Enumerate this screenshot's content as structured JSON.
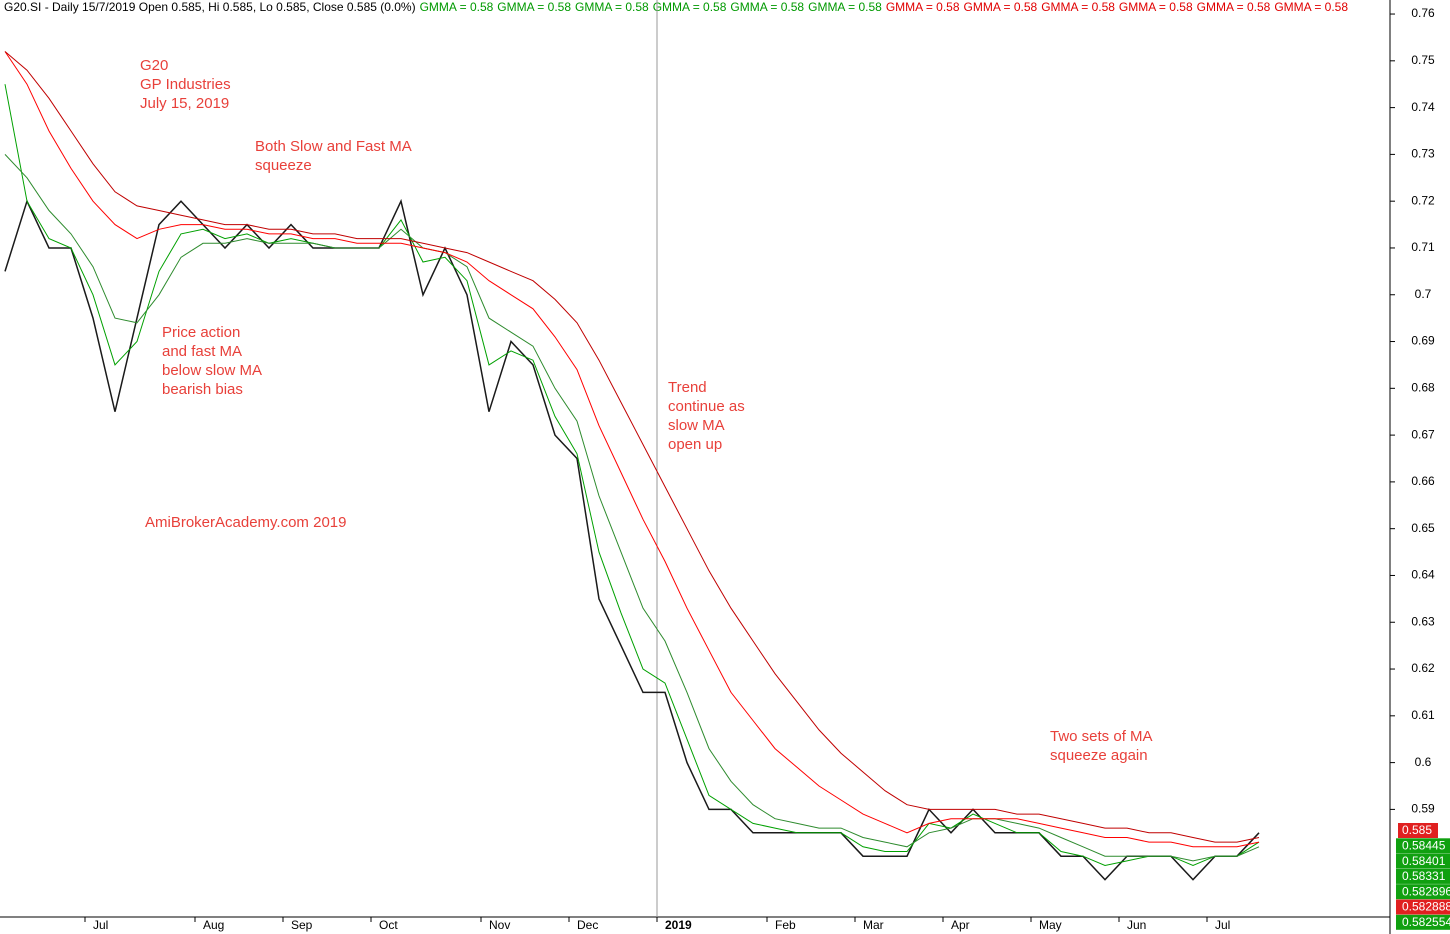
{
  "chart_data": {
    "type": "line",
    "header": {
      "text": "G20.SI - Daily 15/7/2019 Open 0.585, Hi 0.585, Lo 0.585, Close 0.585 (0.0%)",
      "gmma": [
        {
          "label": "GMMA = 0.58",
          "color": "#009900"
        },
        {
          "label": "GMMA = 0.58",
          "color": "#009900"
        },
        {
          "label": "GMMA = 0.58",
          "color": "#009900"
        },
        {
          "label": "GMMA = 0.58",
          "color": "#009900"
        },
        {
          "label": "GMMA = 0.58",
          "color": "#009900"
        },
        {
          "label": "GMMA = 0.58",
          "color": "#009900"
        },
        {
          "label": "GMMA = 0.58",
          "color": "#e00000"
        },
        {
          "label": "GMMA = 0.58",
          "color": "#e00000"
        },
        {
          "label": "GMMA = 0.58",
          "color": "#e00000"
        },
        {
          "label": "GMMA = 0.58",
          "color": "#e00000"
        },
        {
          "label": "GMMA = 0.58",
          "color": "#e00000"
        },
        {
          "label": "GMMA = 0.58",
          "color": "#e00000"
        }
      ]
    },
    "annotation_color": "#e8403a",
    "annotations": [
      [
        "G20",
        "GP Industries",
        "July 15, 2019"
      ],
      [
        "Both Slow and Fast MA",
        "squeeze"
      ],
      [
        "Price action",
        "and fast MA",
        "below slow MA",
        "bearish bias"
      ],
      [
        "Trend",
        "continue as",
        "slow MA",
        "open up"
      ],
      [
        "AmiBrokerAcademy.com   2019"
      ],
      [
        "Two sets of MA",
        "squeeze again"
      ]
    ],
    "categories": [
      null,
      null,
      null,
      null,
      "Jul",
      null,
      null,
      null,
      null,
      "Aug",
      null,
      null,
      null,
      "Sep",
      null,
      null,
      null,
      "Oct",
      null,
      null,
      null,
      null,
      "Nov",
      null,
      null,
      null,
      "Dec",
      null,
      null,
      null,
      "2019",
      null,
      null,
      null,
      null,
      "Feb",
      null,
      null,
      null,
      "Mar",
      null,
      null,
      null,
      "Apr",
      null,
      null,
      null,
      "May",
      null,
      null,
      null,
      "Jun",
      null,
      null,
      null,
      "Jul",
      null,
      null
    ],
    "series": [
      {
        "color": "#1a1a1a",
        "values": [
          0.705,
          0.72,
          0.71,
          0.71,
          0.695,
          0.675,
          0.695,
          0.715,
          0.72,
          0.715,
          0.71,
          0.715,
          0.71,
          0.715,
          0.71,
          0.71,
          0.71,
          0.71,
          0.72,
          0.7,
          0.71,
          0.7,
          0.675,
          0.69,
          0.685,
          0.67,
          0.665,
          0.635,
          0.625,
          0.615,
          0.615,
          0.6,
          0.59,
          0.59,
          0.585,
          0.585,
          0.585,
          0.585,
          0.585,
          0.58,
          0.58,
          0.58,
          0.59,
          0.585,
          0.59,
          0.585,
          0.585,
          0.585,
          0.58,
          0.58,
          0.575,
          0.58,
          0.58,
          0.58,
          0.575,
          0.58,
          0.58,
          0.585
        ]
      },
      {
        "color": "#00a000",
        "values": [
          0.745,
          0.72,
          0.712,
          0.71,
          0.7,
          0.685,
          0.69,
          0.705,
          0.713,
          0.714,
          0.712,
          0.713,
          0.711,
          0.712,
          0.711,
          0.71,
          0.71,
          0.71,
          0.716,
          0.707,
          0.708,
          0.703,
          0.685,
          0.688,
          0.686,
          0.674,
          0.666,
          0.645,
          0.632,
          0.62,
          0.617,
          0.605,
          0.593,
          0.59,
          0.587,
          0.586,
          0.585,
          0.585,
          0.585,
          0.582,
          0.581,
          0.581,
          0.587,
          0.586,
          0.589,
          0.587,
          0.585,
          0.585,
          0.581,
          0.58,
          0.578,
          0.579,
          0.58,
          0.58,
          0.578,
          0.58,
          0.58,
          0.583
        ]
      },
      {
        "color": "#2e8b2e",
        "values": [
          0.73,
          0.725,
          0.718,
          0.713,
          0.706,
          0.695,
          0.694,
          0.7,
          0.708,
          0.711,
          0.711,
          0.712,
          0.711,
          0.711,
          0.711,
          0.71,
          0.71,
          0.71,
          0.714,
          0.71,
          0.709,
          0.706,
          0.695,
          0.692,
          0.689,
          0.68,
          0.673,
          0.657,
          0.645,
          0.633,
          0.626,
          0.615,
          0.603,
          0.596,
          0.591,
          0.588,
          0.587,
          0.586,
          0.586,
          0.584,
          0.583,
          0.582,
          0.585,
          0.586,
          0.588,
          0.588,
          0.587,
          0.586,
          0.584,
          0.582,
          0.58,
          0.58,
          0.58,
          0.58,
          0.579,
          0.58,
          0.58,
          0.582
        ]
      },
      {
        "color": "#ff0000",
        "values": [
          0.752,
          0.745,
          0.735,
          0.727,
          0.72,
          0.715,
          0.712,
          0.714,
          0.715,
          0.715,
          0.714,
          0.714,
          0.713,
          0.713,
          0.712,
          0.712,
          0.711,
          0.711,
          0.711,
          0.71,
          0.709,
          0.707,
          0.703,
          0.7,
          0.697,
          0.691,
          0.684,
          0.672,
          0.662,
          0.652,
          0.643,
          0.633,
          0.624,
          0.615,
          0.609,
          0.603,
          0.599,
          0.595,
          0.592,
          0.589,
          0.587,
          0.585,
          0.587,
          0.588,
          0.588,
          0.588,
          0.588,
          0.587,
          0.586,
          0.585,
          0.584,
          0.584,
          0.583,
          0.583,
          0.582,
          0.582,
          0.582,
          0.583
        ]
      },
      {
        "color": "#c00000",
        "values": [
          0.752,
          0.748,
          0.742,
          0.735,
          0.728,
          0.722,
          0.719,
          0.718,
          0.717,
          0.716,
          0.715,
          0.715,
          0.714,
          0.714,
          0.713,
          0.713,
          0.712,
          0.712,
          0.712,
          0.711,
          0.71,
          0.709,
          0.707,
          0.705,
          0.703,
          0.699,
          0.694,
          0.686,
          0.677,
          0.668,
          0.659,
          0.65,
          0.641,
          0.633,
          0.626,
          0.619,
          0.613,
          0.607,
          0.602,
          0.598,
          0.594,
          0.591,
          0.59,
          0.59,
          0.59,
          0.59,
          0.589,
          0.589,
          0.588,
          0.587,
          0.586,
          0.586,
          0.585,
          0.585,
          0.584,
          0.583,
          0.583,
          0.584
        ]
      }
    ],
    "ylim": [
      0.567,
      0.763
    ],
    "yticks": [
      0.59,
      0.6,
      0.61,
      0.62,
      0.63,
      0.64,
      0.65,
      0.66,
      0.67,
      0.68,
      0.69,
      0.7,
      0.71,
      0.72,
      0.73,
      0.74,
      0.75,
      0.76
    ],
    "right_labels": [
      {
        "label": "0.585",
        "color": "#e02020"
      },
      {
        "label": "0.58445",
        "color": "#10a010"
      },
      {
        "label": "0.58401",
        "color": "#10a010"
      },
      {
        "label": "0.58331",
        "color": "#10a010"
      },
      {
        "label": "0.582896",
        "color": "#10a010"
      },
      {
        "label": "0.582888",
        "color": "#e02020"
      },
      {
        "label": "0.582554",
        "color": "#10a010"
      }
    ]
  }
}
